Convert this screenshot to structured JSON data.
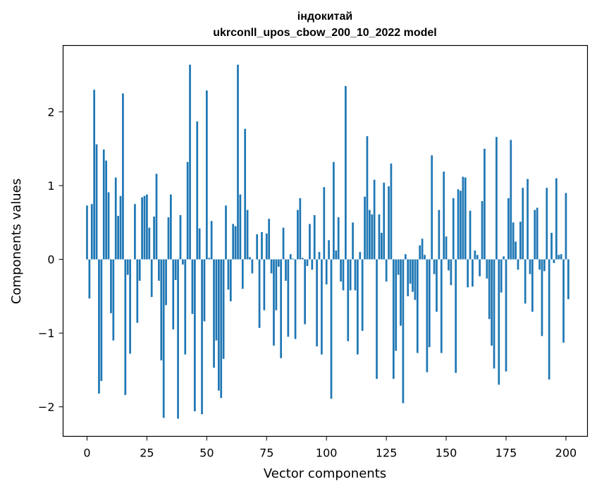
{
  "chart_data": {
    "type": "bar",
    "title": "індокитай",
    "subtitle": "ukrconll_upos_cbow_200_10_2022 model",
    "xlabel": "Vector components",
    "ylabel": "Components values",
    "xlim": [
      -10,
      209
    ],
    "ylim": [
      -2.4,
      2.9
    ],
    "x_ticks": [
      0,
      25,
      50,
      75,
      100,
      125,
      150,
      175,
      200
    ],
    "x_tick_labels": [
      "0",
      "25",
      "50",
      "75",
      "100",
      "125",
      "150",
      "175",
      "200"
    ],
    "y_ticks": [
      -2,
      -1,
      0,
      1,
      2
    ],
    "y_tick_labels": [
      "−2",
      "−1",
      "0",
      "1",
      "2"
    ],
    "grid": false,
    "bar_color": "#1f77b4",
    "values": [
      0.73,
      -0.53,
      0.75,
      2.3,
      1.56,
      -1.82,
      -1.65,
      1.49,
      1.34,
      0.91,
      -0.73,
      -1.1,
      1.11,
      0.59,
      0.86,
      2.25,
      -1.84,
      -0.21,
      -1.28,
      0.0,
      0.75,
      -0.86,
      -0.29,
      0.84,
      0.86,
      0.88,
      0.43,
      -0.51,
      0.58,
      1.16,
      -0.29,
      -1.37,
      -2.15,
      -0.62,
      0.57,
      0.88,
      -0.95,
      -0.28,
      -2.16,
      0.6,
      -0.07,
      -1.29,
      1.32,
      2.64,
      -0.74,
      -2.06,
      1.87,
      0.42,
      -2.1,
      -0.84,
      2.29,
      0.02,
      0.52,
      -1.47,
      -1.1,
      -1.78,
      -1.88,
      -1.35,
      0.73,
      -0.41,
      -0.57,
      0.48,
      0.45,
      2.64,
      0.88,
      -0.4,
      1.77,
      0.67,
      0.03,
      -0.19,
      0.0,
      0.34,
      -0.93,
      0.37,
      -0.69,
      0.35,
      0.55,
      -0.19,
      -1.17,
      -0.69,
      -0.1,
      -1.34,
      0.43,
      -0.29,
      -1.05,
      0.07,
      0.01,
      -1.08,
      0.67,
      0.83,
      0.02,
      -0.88,
      -0.09,
      0.48,
      -0.14,
      0.6,
      -1.18,
      0.1,
      -1.29,
      0.98,
      -0.34,
      0.26,
      -1.89,
      1.32,
      0.12,
      0.57,
      -0.3,
      -0.42,
      2.35,
      -1.11,
      -0.42,
      0.5,
      -0.42,
      -1.29,
      0.1,
      -0.97,
      0.85,
      1.67,
      0.67,
      0.61,
      1.08,
      -1.62,
      0.61,
      0.36,
      1.04,
      -0.3,
      0.99,
      1.3,
      -1.62,
      -1.24,
      -0.21,
      -0.9,
      -1.95,
      0.07,
      -0.5,
      -0.33,
      -0.44,
      -0.55,
      -1.27,
      0.19,
      0.28,
      0.06,
      -1.53,
      -1.19,
      1.41,
      -0.2,
      -0.71,
      0.67,
      -1.27,
      1.19,
      0.31,
      -0.15,
      -0.35,
      0.83,
      -1.54,
      0.95,
      0.93,
      1.12,
      1.11,
      -0.38,
      0.66,
      -0.37,
      0.12,
      0.06,
      -0.23,
      0.79,
      1.5,
      -0.26,
      -0.81,
      -1.17,
      -1.48,
      1.66,
      -1.7,
      -0.45,
      0.04,
      -1.52,
      0.83,
      1.62,
      0.5,
      0.24,
      -0.14,
      0.51,
      0.97,
      -0.6,
      1.09,
      -0.2,
      -0.71,
      0.67,
      0.7,
      -0.14,
      -1.04,
      -0.16,
      0.97,
      -1.63,
      0.36,
      -0.05,
      1.1,
      0.06,
      0.07,
      -1.13,
      0.9,
      -0.54
    ]
  }
}
